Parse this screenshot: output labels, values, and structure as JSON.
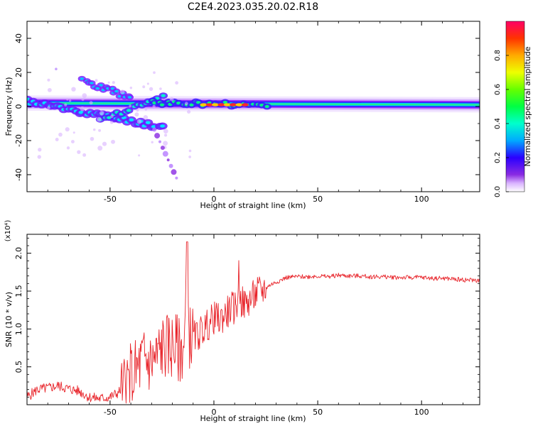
{
  "title": "C2E4.2023.035.20.02.R18",
  "chart_data": [
    {
      "type": "heatmap",
      "xlabel": "Height of straight line (km)",
      "ylabel": "Frequency (Hz)",
      "xlim": [
        -90,
        128
      ],
      "ylim": [
        -50,
        50
      ],
      "xticks": [
        -50,
        0,
        50,
        100
      ],
      "yticks": [
        -40,
        -20,
        0,
        20,
        40
      ],
      "colorbar": {
        "label": "Normalized spectral amplitude",
        "range": [
          0,
          1
        ],
        "ticks": [
          0.0,
          0.2,
          0.4,
          0.6,
          0.8
        ]
      },
      "features": [
        {
          "name": "main-band",
          "x": [
            -90,
            128
          ],
          "y_center": [
            2,
            1
          ],
          "amplitude": 0.4
        },
        {
          "name": "descending-track",
          "x": [
            -90,
            -25
          ],
          "y": [
            3,
            -12
          ],
          "amplitude": 0.35
        },
        {
          "name": "upper-branch",
          "x": [
            -63,
            -40
          ],
          "y": [
            15,
            5
          ],
          "amplitude": 0.3
        },
        {
          "name": "lower-tail",
          "x": [
            -30,
            -18
          ],
          "y": [
            -10,
            -42
          ],
          "amplitude": 0.15
        },
        {
          "name": "peak-cluster",
          "x": [
            -5,
            15
          ],
          "y": [
            1,
            1
          ],
          "amplitude": 0.85
        }
      ]
    },
    {
      "type": "line",
      "xlabel": "Height of straight line (km)",
      "ylabel": "SNR (10 * v/v)",
      "yunit": "(x10⁴)",
      "xlim": [
        -90,
        128
      ],
      "ylim": [
        0,
        22500
      ],
      "xticks": [
        -50,
        0,
        50,
        100
      ],
      "yticks": [
        5000,
        10000,
        15000,
        20000
      ],
      "yticklabels": [
        "0.5",
        "1.0",
        "1.5",
        "2.0"
      ],
      "color": "#e8252b",
      "series": [
        {
          "x": [
            -90,
            -85,
            -80,
            -75,
            -70,
            -65,
            -60,
            -55,
            -50,
            -46,
            -43,
            -40,
            -37,
            -34,
            -31,
            -28,
            -25,
            -22,
            -19,
            -16,
            -14,
            -13,
            -12,
            -10,
            -8,
            -5,
            -2,
            0,
            3,
            6,
            9,
            11,
            12,
            13,
            15,
            18,
            21,
            24,
            27,
            30,
            35,
            40,
            45,
            50,
            55,
            60,
            65,
            70,
            75,
            80,
            85,
            90,
            95,
            100,
            105,
            110,
            115,
            120,
            125,
            128
          ],
          "y": [
            1000,
            2000,
            2200,
            2500,
            2100,
            1800,
            1000,
            800,
            1000,
            1600,
            2500,
            3800,
            4500,
            6000,
            5600,
            6000,
            7600,
            7700,
            7800,
            7000,
            8500,
            21500,
            9000,
            8800,
            9200,
            10000,
            10800,
            11500,
            11200,
            12100,
            12800,
            12800,
            17200,
            13600,
            13200,
            14000,
            14800,
            15200,
            15800,
            16200,
            16800,
            16900,
            16900,
            17000,
            16900,
            17100,
            17000,
            17000,
            16900,
            16900,
            16850,
            16800,
            16800,
            16800,
            16700,
            16700,
            16600,
            16500,
            16450,
            16400
          ]
        }
      ]
    }
  ]
}
